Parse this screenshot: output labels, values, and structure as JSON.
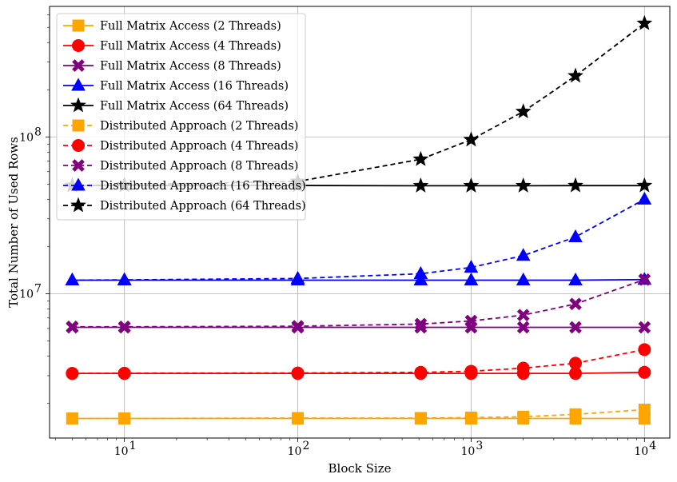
{
  "chart_data": {
    "type": "line",
    "xlabel": "Block Size",
    "ylabel": "Total Number of Used Rows",
    "xscale": "log",
    "yscale": "log",
    "xlim": [
      3.7,
      14000
    ],
    "ylim": [
      1200000,
      680000000
    ],
    "grid": true,
    "legend_position": "top-left",
    "x": [
      5,
      10,
      100,
      512,
      1000,
      2000,
      4000,
      10000
    ],
    "x_ticks": [
      {
        "value": 10,
        "label": "10",
        "exp": "1"
      },
      {
        "value": 100,
        "label": "10",
        "exp": "2"
      },
      {
        "value": 1000,
        "label": "10",
        "exp": "3"
      },
      {
        "value": 10000,
        "label": "10",
        "exp": "4"
      }
    ],
    "y_ticks": [
      {
        "value": 10000000,
        "label": "10",
        "exp": "7"
      },
      {
        "value": 100000000,
        "label": "10",
        "exp": "8"
      }
    ],
    "series": [
      {
        "name": "Full Matrix Access (2 Threads)",
        "color": "#ffa500",
        "marker": "square",
        "dash": false,
        "values": [
          1600000,
          1600000,
          1600000,
          1600000,
          1600000,
          1600000,
          1600000,
          1600000
        ]
      },
      {
        "name": "Full Matrix Access (4 Threads)",
        "color": "#ff0000",
        "marker": "circle",
        "dash": false,
        "values": [
          3100000,
          3100000,
          3100000,
          3100000,
          3100000,
          3100000,
          3100000,
          3150000
        ]
      },
      {
        "name": "Full Matrix Access (8 Threads)",
        "color": "#800080",
        "marker": "x",
        "dash": false,
        "values": [
          6100000,
          6100000,
          6100000,
          6100000,
          6100000,
          6100000,
          6100000,
          6100000
        ]
      },
      {
        "name": "Full Matrix Access (16 Threads)",
        "color": "#0000ff",
        "marker": "triangle",
        "dash": false,
        "values": [
          12200000,
          12200000,
          12200000,
          12200000,
          12200000,
          12200000,
          12200000,
          12300000
        ]
      },
      {
        "name": "Full Matrix Access (64 Threads)",
        "color": "#000000",
        "marker": "star",
        "dash": false,
        "values": [
          49000000,
          49000000,
          49000000,
          48800000,
          48800000,
          48800000,
          48900000,
          48900000
        ]
      },
      {
        "name": "Distributed Approach (2 Threads)",
        "color": "#ffa500",
        "marker": "square",
        "dash": true,
        "values": [
          1600000,
          1600000,
          1610000,
          1610000,
          1620000,
          1640000,
          1700000,
          1820000
        ]
      },
      {
        "name": "Distributed Approach (4 Threads)",
        "color": "#ff0000",
        "marker": "circle",
        "dash": true,
        "values": [
          3100000,
          3110000,
          3120000,
          3150000,
          3200000,
          3350000,
          3600000,
          4400000
        ]
      },
      {
        "name": "Distributed Approach (8 Threads)",
        "color": "#800080",
        "marker": "x",
        "dash": true,
        "values": [
          6150000,
          6150000,
          6200000,
          6400000,
          6700000,
          7300000,
          8600000,
          12300000
        ]
      },
      {
        "name": "Distributed Approach (16 Threads)",
        "color": "#0000ff",
        "marker": "triangle",
        "dash": true,
        "values": [
          12200000,
          12250000,
          12500000,
          13400000,
          14700000,
          17500000,
          23000000,
          40000000
        ]
      },
      {
        "name": "Distributed Approach (64 Threads)",
        "color": "#000000",
        "marker": "star",
        "dash": true,
        "values": [
          49000000,
          49500000,
          52000000,
          72000000,
          96000000,
          145000000,
          245000000,
          530000000
        ]
      }
    ]
  }
}
